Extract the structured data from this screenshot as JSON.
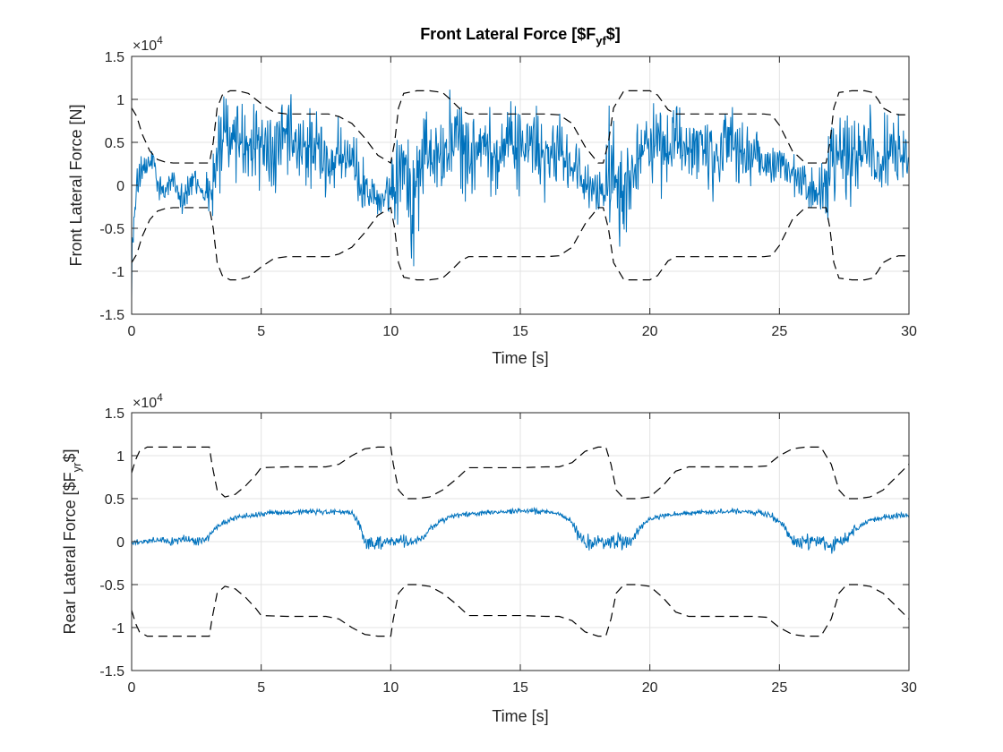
{
  "chart_data": [
    {
      "type": "line",
      "title": "Front Lateral Force [$F_{yf}$]",
      "title_parts": [
        "Front Lateral Force [$F",
        "yf",
        "$]"
      ],
      "xlabel": "Time [s]",
      "ylabel": "Front Lateral Force [N]",
      "xlim": [
        0,
        30
      ],
      "ylim": [
        -1.5,
        1.5
      ],
      "y_multiplier": "×10",
      "y_multiplier_exp": "4",
      "xticks": [
        0,
        5,
        10,
        15,
        20,
        25,
        30
      ],
      "xtick_labels": [
        "0",
        "5",
        "10",
        "15",
        "20",
        "25",
        "30"
      ],
      "yticks": [
        -1.5,
        -1,
        -0.5,
        0,
        0.5,
        1,
        1.5
      ],
      "ytick_labels": [
        "-1.5",
        "-1",
        "-0.5",
        "0",
        "0.5",
        "1",
        "1.5"
      ],
      "grid": true,
      "series": [
        {
          "role": "signal",
          "color": "#0072BD",
          "style": "solid",
          "x": [
            0,
            0.1,
            0.3,
            0.5,
            0.8,
            1.0,
            1.3,
            1.6,
            2.0,
            2.4,
            2.8,
            3.1,
            3.3,
            3.5,
            4.0,
            4.5,
            5.0,
            5.5,
            6.0,
            6.5,
            7.0,
            7.5,
            8.0,
            8.5,
            9.0,
            9.5,
            9.9,
            10.2,
            10.5,
            10.8,
            11.2,
            11.6,
            12.0,
            12.5,
            13.0,
            13.5,
            14.0,
            14.5,
            15.0,
            15.5,
            16.0,
            16.5,
            17.0,
            17.5,
            18.0,
            18.3,
            18.6,
            19.0,
            19.5,
            20.0,
            20.5,
            21.0,
            21.5,
            22.0,
            22.5,
            23.0,
            23.5,
            24.0,
            24.5,
            25.0,
            25.5,
            26.0,
            26.5,
            26.8,
            27.2,
            27.5,
            28.0,
            28.5,
            29.0,
            29.5,
            30.0
          ],
          "y": [
            -0.9,
            -0.4,
            0.2,
            0.15,
            0.3,
            0.0,
            -0.1,
            0.1,
            -0.15,
            0.05,
            -0.1,
            0.0,
            0.3,
            0.5,
            0.6,
            0.4,
            0.5,
            0.3,
            0.6,
            0.35,
            0.5,
            0.2,
            0.4,
            0.2,
            0.0,
            -0.2,
            -0.1,
            0.1,
            0.5,
            -0.3,
            0.4,
            0.5,
            0.3,
            0.6,
            0.3,
            0.5,
            0.3,
            0.6,
            0.4,
            0.5,
            0.25,
            0.45,
            0.2,
            0.0,
            -0.1,
            0.05,
            0.3,
            -0.1,
            0.4,
            0.5,
            0.3,
            0.6,
            0.35,
            0.5,
            0.3,
            0.6,
            0.3,
            0.4,
            0.2,
            0.3,
            0.1,
            0.0,
            -0.1,
            0.1,
            0.5,
            0.3,
            0.4,
            0.5,
            0.3,
            0.4,
            0.3
          ],
          "noise": [
            0.4,
            0.3,
            0.25,
            0.2,
            0.2,
            0.2,
            0.15,
            0.2,
            0.2,
            0.2,
            0.15,
            0.5,
            0.6,
            0.55,
            0.5,
            0.45,
            0.45,
            0.45,
            0.45,
            0.45,
            0.45,
            0.45,
            0.4,
            0.35,
            0.3,
            0.2,
            0.2,
            0.5,
            0.7,
            0.65,
            0.55,
            0.5,
            0.5,
            0.5,
            0.45,
            0.45,
            0.45,
            0.45,
            0.45,
            0.45,
            0.4,
            0.4,
            0.35,
            0.3,
            0.25,
            0.5,
            0.7,
            0.6,
            0.5,
            0.5,
            0.45,
            0.45,
            0.45,
            0.45,
            0.45,
            0.45,
            0.4,
            0.35,
            0.3,
            0.25,
            0.25,
            0.25,
            0.25,
            0.5,
            0.65,
            0.6,
            0.5,
            0.45,
            0.45,
            0.4,
            0.4
          ]
        },
        {
          "role": "upper-bound",
          "color": "#000000",
          "style": "dashed",
          "x": [
            0,
            0.2,
            0.4,
            0.7,
            1.0,
            1.3,
            1.6,
            2.0,
            3.0,
            3.15,
            3.3,
            3.5,
            3.8,
            4.1,
            4.5,
            5.0,
            5.5,
            6.0,
            7.0,
            7.6,
            8.0,
            8.5,
            9.0,
            9.5,
            10.0,
            10.15,
            10.3,
            10.5,
            11.0,
            11.5,
            12.0,
            12.3,
            12.7,
            13.0,
            14.0,
            15.0,
            16.0,
            16.5,
            17.0,
            17.5,
            18.0,
            18.2,
            18.4,
            18.6,
            19.0,
            19.5,
            20.0,
            20.3,
            20.7,
            21.0,
            22.0,
            23.0,
            24.0,
            24.4,
            24.7,
            25.0,
            25.5,
            26.0,
            26.8,
            26.95,
            27.1,
            27.3,
            27.8,
            28.3,
            28.6,
            28.8,
            29.0,
            29.3,
            29.6,
            30.0
          ],
          "y": [
            0.9,
            0.8,
            0.6,
            0.4,
            0.3,
            0.27,
            0.26,
            0.26,
            0.26,
            0.5,
            0.9,
            1.05,
            1.1,
            1.1,
            1.07,
            0.95,
            0.85,
            0.83,
            0.83,
            0.83,
            0.8,
            0.72,
            0.55,
            0.35,
            0.26,
            0.5,
            0.9,
            1.07,
            1.1,
            1.1,
            1.08,
            1.0,
            0.88,
            0.83,
            0.83,
            0.83,
            0.83,
            0.82,
            0.72,
            0.45,
            0.26,
            0.26,
            0.5,
            0.9,
            1.1,
            1.1,
            1.1,
            1.05,
            0.88,
            0.83,
            0.83,
            0.83,
            0.83,
            0.83,
            0.82,
            0.7,
            0.4,
            0.26,
            0.26,
            0.5,
            0.9,
            1.08,
            1.1,
            1.1,
            1.08,
            1.0,
            0.9,
            0.85,
            0.82,
            0.82
          ]
        },
        {
          "role": "lower-bound",
          "color": "#000000",
          "style": "dashed",
          "x": [
            0,
            0.2,
            0.4,
            0.7,
            1.0,
            1.3,
            1.6,
            2.0,
            3.0,
            3.15,
            3.3,
            3.5,
            3.8,
            4.1,
            4.5,
            5.0,
            5.5,
            6.0,
            7.0,
            7.6,
            8.0,
            8.5,
            9.0,
            9.5,
            10.0,
            10.15,
            10.3,
            10.5,
            11.0,
            11.5,
            12.0,
            12.3,
            12.7,
            13.0,
            14.0,
            15.0,
            16.0,
            16.5,
            17.0,
            17.5,
            18.0,
            18.2,
            18.4,
            18.6,
            19.0,
            19.5,
            20.0,
            20.3,
            20.7,
            21.0,
            22.0,
            23.0,
            24.0,
            24.4,
            24.7,
            25.0,
            25.5,
            26.0,
            26.8,
            26.95,
            27.1,
            27.3,
            27.8,
            28.3,
            28.6,
            28.8,
            29.0,
            29.3,
            29.6,
            30.0
          ],
          "y": [
            -0.9,
            -0.8,
            -0.6,
            -0.4,
            -0.3,
            -0.27,
            -0.26,
            -0.26,
            -0.26,
            -0.5,
            -0.9,
            -1.05,
            -1.1,
            -1.1,
            -1.07,
            -0.95,
            -0.85,
            -0.83,
            -0.83,
            -0.83,
            -0.8,
            -0.72,
            -0.55,
            -0.35,
            -0.26,
            -0.5,
            -0.9,
            -1.07,
            -1.1,
            -1.1,
            -1.08,
            -1.0,
            -0.88,
            -0.83,
            -0.83,
            -0.83,
            -0.83,
            -0.82,
            -0.72,
            -0.45,
            -0.26,
            -0.26,
            -0.5,
            -0.9,
            -1.1,
            -1.1,
            -1.1,
            -1.05,
            -0.88,
            -0.83,
            -0.83,
            -0.83,
            -0.83,
            -0.83,
            -0.82,
            -0.7,
            -0.4,
            -0.26,
            -0.26,
            -0.5,
            -0.9,
            -1.08,
            -1.1,
            -1.1,
            -1.08,
            -1.0,
            -0.9,
            -0.85,
            -0.82,
            -0.82
          ]
        }
      ]
    },
    {
      "type": "line",
      "title": "",
      "xlabel": "Time [s]",
      "ylabel": "Rear Lateral Force [$F_{yr}$]",
      "ylabel_parts": [
        "Rear Lateral Force [$F",
        "yr",
        "$]"
      ],
      "xlim": [
        0,
        30
      ],
      "ylim": [
        -1.5,
        1.5
      ],
      "y_multiplier": "×10",
      "y_multiplier_exp": "4",
      "xticks": [
        0,
        5,
        10,
        15,
        20,
        25,
        30
      ],
      "xtick_labels": [
        "0",
        "5",
        "10",
        "15",
        "20",
        "25",
        "30"
      ],
      "yticks": [
        -1.5,
        -1,
        -0.5,
        0,
        0.5,
        1,
        1.5
      ],
      "ytick_labels": [
        "-1.5",
        "-1",
        "-0.5",
        "0",
        "0.5",
        "1",
        "1.5"
      ],
      "grid": true,
      "series": [
        {
          "role": "signal",
          "color": "#0072BD",
          "style": "solid",
          "x": [
            0,
            0.5,
            1.0,
            1.5,
            2.0,
            2.5,
            3.0,
            3.2,
            3.5,
            4.0,
            4.5,
            5.0,
            5.5,
            6.0,
            6.5,
            7.0,
            7.5,
            8.0,
            8.5,
            8.8,
            9.0,
            9.2,
            9.5,
            10.0,
            10.5,
            11.0,
            11.3,
            11.5,
            12.0,
            12.5,
            13.0,
            13.5,
            14.0,
            14.5,
            15.0,
            15.5,
            16.0,
            16.5,
            17.0,
            17.3,
            17.5,
            18.0,
            18.5,
            19.0,
            19.3,
            19.6,
            20.0,
            20.5,
            21.0,
            21.5,
            22.0,
            22.5,
            23.0,
            23.5,
            24.0,
            24.5,
            25.0,
            25.3,
            25.6,
            26.0,
            26.5,
            27.0,
            27.5,
            28.0,
            28.5,
            29.0,
            29.5,
            30.0
          ],
          "y": [
            -0.02,
            0.0,
            0.02,
            0.0,
            0.03,
            0.0,
            0.05,
            0.15,
            0.22,
            0.28,
            0.3,
            0.32,
            0.34,
            0.34,
            0.35,
            0.35,
            0.34,
            0.35,
            0.33,
            0.2,
            0.0,
            -0.03,
            0.0,
            0.0,
            0.0,
            0.0,
            0.05,
            0.15,
            0.25,
            0.3,
            0.32,
            0.33,
            0.34,
            0.35,
            0.36,
            0.35,
            0.35,
            0.33,
            0.22,
            0.05,
            -0.02,
            0.0,
            0.0,
            0.0,
            0.0,
            0.15,
            0.26,
            0.3,
            0.32,
            0.33,
            0.34,
            0.34,
            0.35,
            0.35,
            0.34,
            0.32,
            0.25,
            0.1,
            -0.02,
            0.0,
            0.0,
            -0.05,
            0.0,
            0.15,
            0.25,
            0.28,
            0.3,
            0.31
          ],
          "noise": [
            0.03,
            0.03,
            0.04,
            0.04,
            0.05,
            0.06,
            0.05,
            0.03,
            0.03,
            0.03,
            0.03,
            0.03,
            0.03,
            0.03,
            0.03,
            0.03,
            0.03,
            0.03,
            0.03,
            0.05,
            0.08,
            0.1,
            0.1,
            0.08,
            0.08,
            0.06,
            0.04,
            0.03,
            0.03,
            0.03,
            0.03,
            0.03,
            0.03,
            0.03,
            0.03,
            0.03,
            0.03,
            0.03,
            0.05,
            0.08,
            0.08,
            0.09,
            0.09,
            0.1,
            0.08,
            0.04,
            0.03,
            0.03,
            0.03,
            0.03,
            0.03,
            0.03,
            0.03,
            0.03,
            0.03,
            0.03,
            0.05,
            0.08,
            0.08,
            0.09,
            0.09,
            0.1,
            0.08,
            0.05,
            0.03,
            0.03,
            0.03,
            0.03
          ]
        },
        {
          "role": "upper-bound",
          "color": "#000000",
          "style": "dashed",
          "x": [
            0,
            0.15,
            0.3,
            0.6,
            1.0,
            2.0,
            3.0,
            3.1,
            3.3,
            3.6,
            4.0,
            4.4,
            4.8,
            5.0,
            6.0,
            7.0,
            7.5,
            8.0,
            8.5,
            9.0,
            9.5,
            10.0,
            10.1,
            10.3,
            10.6,
            11.0,
            11.5,
            12.0,
            12.5,
            13.0,
            14.0,
            15.0,
            16.0,
            16.5,
            17.0,
            17.5,
            18.0,
            18.3,
            18.5,
            18.7,
            19.0,
            19.5,
            20.0,
            20.5,
            21.0,
            21.5,
            22.0,
            23.0,
            24.0,
            24.5,
            25.0,
            25.5,
            26.0,
            26.3,
            26.6,
            27.0,
            27.3,
            27.6,
            28.0,
            28.5,
            29.0,
            29.5,
            30.0
          ],
          "y": [
            0.8,
            0.95,
            1.05,
            1.1,
            1.1,
            1.1,
            1.1,
            0.9,
            0.6,
            0.52,
            0.55,
            0.65,
            0.78,
            0.86,
            0.87,
            0.87,
            0.87,
            0.9,
            1.0,
            1.08,
            1.1,
            1.1,
            0.9,
            0.6,
            0.5,
            0.5,
            0.52,
            0.6,
            0.72,
            0.86,
            0.86,
            0.86,
            0.87,
            0.87,
            0.92,
            1.05,
            1.1,
            1.1,
            0.9,
            0.6,
            0.5,
            0.5,
            0.52,
            0.65,
            0.82,
            0.87,
            0.87,
            0.87,
            0.87,
            0.88,
            1.0,
            1.08,
            1.1,
            1.1,
            1.1,
            0.9,
            0.6,
            0.5,
            0.5,
            0.52,
            0.6,
            0.75,
            0.9
          ]
        },
        {
          "role": "lower-bound",
          "color": "#000000",
          "style": "dashed",
          "x": [
            0,
            0.15,
            0.3,
            0.6,
            1.0,
            2.0,
            3.0,
            3.1,
            3.3,
            3.6,
            4.0,
            4.4,
            4.8,
            5.0,
            6.0,
            7.0,
            7.5,
            8.0,
            8.5,
            9.0,
            9.5,
            10.0,
            10.1,
            10.3,
            10.6,
            11.0,
            11.5,
            12.0,
            12.5,
            13.0,
            14.0,
            15.0,
            16.0,
            16.5,
            17.0,
            17.5,
            18.0,
            18.3,
            18.5,
            18.7,
            19.0,
            19.5,
            20.0,
            20.5,
            21.0,
            21.5,
            22.0,
            23.0,
            24.0,
            24.5,
            25.0,
            25.5,
            26.0,
            26.3,
            26.6,
            27.0,
            27.3,
            27.6,
            28.0,
            28.5,
            29.0,
            29.5,
            30.0
          ],
          "y": [
            -0.8,
            -0.95,
            -1.05,
            -1.1,
            -1.1,
            -1.1,
            -1.1,
            -0.9,
            -0.6,
            -0.52,
            -0.55,
            -0.65,
            -0.78,
            -0.86,
            -0.87,
            -0.87,
            -0.87,
            -0.9,
            -1.0,
            -1.08,
            -1.1,
            -1.1,
            -0.9,
            -0.6,
            -0.5,
            -0.5,
            -0.52,
            -0.6,
            -0.72,
            -0.86,
            -0.86,
            -0.86,
            -0.87,
            -0.87,
            -0.92,
            -1.05,
            -1.1,
            -1.1,
            -0.9,
            -0.6,
            -0.5,
            -0.5,
            -0.52,
            -0.65,
            -0.82,
            -0.87,
            -0.87,
            -0.87,
            -0.87,
            -0.88,
            -1.0,
            -1.08,
            -1.1,
            -1.1,
            -1.1,
            -0.9,
            -0.6,
            -0.5,
            -0.5,
            -0.52,
            -0.6,
            -0.75,
            -0.9
          ]
        }
      ]
    }
  ]
}
